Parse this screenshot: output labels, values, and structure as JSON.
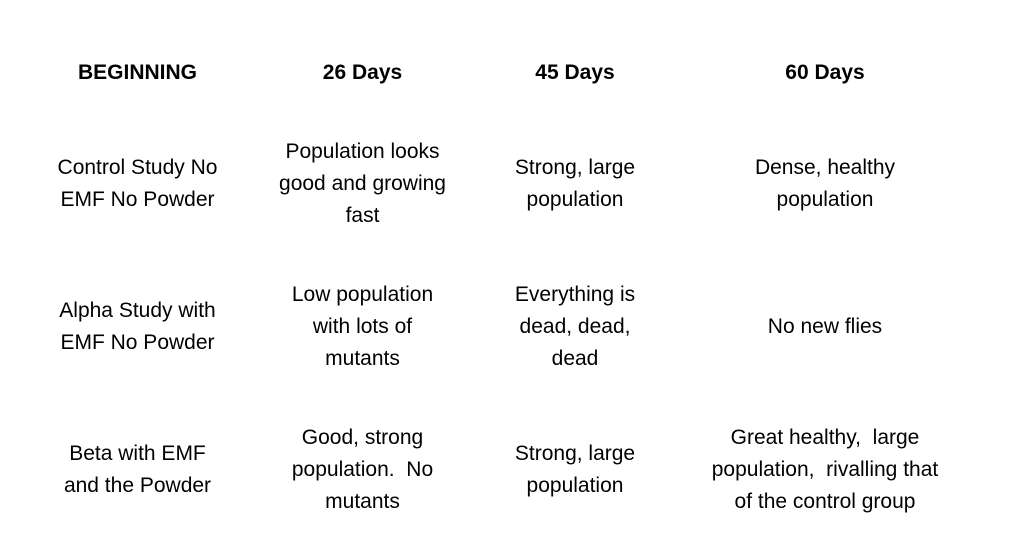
{
  "colors": {
    "background": "#ffffff",
    "text": "#000000"
  },
  "table": {
    "headers": [
      "BEGINNING",
      "26 Days",
      "45 Days",
      "60 Days"
    ],
    "cells": [
      [
        [
          "Control Study No",
          "EMF No Powder"
        ],
        [
          "Population looks",
          "good and growing",
          "fast"
        ],
        [
          "Strong, large",
          "population"
        ],
        [
          "Dense, healthy",
          "population"
        ]
      ],
      [
        [
          "Alpha Study with",
          "EMF No Powder"
        ],
        [
          "Low population",
          "with lots of",
          "mutants"
        ],
        [
          "Everything is",
          "dead, dead,",
          "dead"
        ],
        [
          "No new flies"
        ]
      ],
      [
        [
          "Beta with EMF",
          "and the Powder"
        ],
        [
          "Good, strong",
          "population.  No",
          "mutants"
        ],
        [
          "Strong, large",
          "population"
        ],
        [
          "Great healthy,  large",
          "population,  rivalling that",
          "of the control group"
        ]
      ]
    ]
  }
}
